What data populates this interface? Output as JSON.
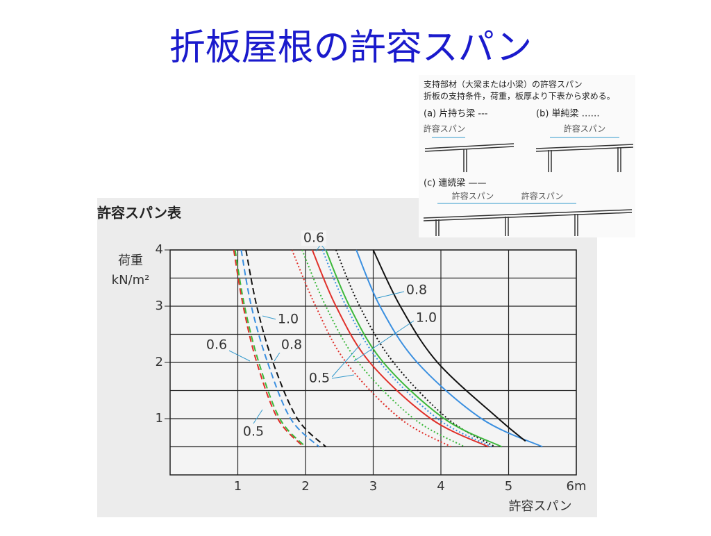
{
  "title": "折板屋根の許容スパン",
  "inset": {
    "heading": "支持部材（大梁または小梁）の許容スパン",
    "note": "折板の支持条件，荷重，板厚より下表から求める。",
    "case_a": "(a) 片持ち梁 ---",
    "case_b": "(b) 単純梁 ……",
    "case_c": "(c) 連続梁 ——",
    "span_labels": [
      "許容スパン",
      "許容スパン",
      "許容スパン",
      "許容スパン"
    ]
  },
  "chart_data": {
    "type": "line",
    "title": "許容スパン表",
    "y_label": [
      "荷重",
      "kN/m²"
    ],
    "x_label": "許容スパン",
    "xlim": [
      0,
      6
    ],
    "ylim": [
      0,
      4
    ],
    "xticks": [
      1,
      2,
      3,
      4,
      5,
      {
        "value": 6,
        "label": "6m"
      }
    ],
    "yticks": [
      1,
      2,
      3,
      4
    ],
    "minor_yticks": [
      0.5,
      1.5,
      2.5,
      3.5
    ],
    "grid": true,
    "series": [
      {
        "color": "#e0302a",
        "linestyle": "dash",
        "x": [
          0.94,
          1.08,
          1.28,
          1.59,
          1.97
        ],
        "values": [
          4,
          3,
          2,
          1,
          0.5
        ]
      },
      {
        "color": "#3cb83c",
        "linestyle": "dash",
        "x": [
          0.96,
          1.1,
          1.31,
          1.62,
          2.0
        ],
        "values": [
          4,
          3,
          2,
          1,
          0.5
        ]
      },
      {
        "color": "#3a8fe0",
        "linestyle": "dash",
        "x": [
          1.05,
          1.2,
          1.44,
          1.78,
          2.2
        ],
        "values": [
          4,
          3,
          2,
          1,
          0.5
        ]
      },
      {
        "color": "#111111",
        "linestyle": "dash",
        "x": [
          1.12,
          1.28,
          1.52,
          1.88,
          2.3
        ],
        "values": [
          4,
          3,
          2,
          1,
          0.5
        ]
      },
      {
        "color": "#e0302a",
        "linestyle": "dot",
        "x": [
          1.8,
          2.15,
          2.6,
          3.4,
          4.15
        ],
        "values": [
          4,
          3,
          2,
          1,
          0.5
        ]
      },
      {
        "color": "#3cb83c",
        "linestyle": "dot",
        "x": [
          1.95,
          2.3,
          2.78,
          3.6,
          4.35
        ],
        "values": [
          4,
          3,
          2,
          1,
          0.5
        ]
      },
      {
        "color": "#3a8fe0",
        "linestyle": "dot",
        "x": [
          2.25,
          2.6,
          3.1,
          3.95,
          4.75
        ],
        "values": [
          4,
          3,
          2,
          1,
          0.5
        ]
      },
      {
        "color": "#111111",
        "linestyle": "dot",
        "x": [
          2.45,
          2.8,
          3.3,
          4.1,
          4.8
        ],
        "values": [
          4,
          3,
          2,
          1,
          0.5
        ]
      },
      {
        "color": "#e0302a",
        "linestyle": "solid",
        "x": [
          2.1,
          2.45,
          2.95,
          3.85,
          4.7
        ],
        "values": [
          4,
          3,
          2,
          1,
          0.5
        ]
      },
      {
        "color": "#3cb83c",
        "linestyle": "solid",
        "x": [
          2.3,
          2.65,
          3.15,
          4.05,
          4.9
        ],
        "values": [
          4,
          3,
          2,
          1,
          0.5
        ]
      },
      {
        "color": "#3a8fe0",
        "linestyle": "solid",
        "x": [
          2.75,
          3.1,
          3.65,
          4.6,
          5.5
        ],
        "values": [
          4,
          3,
          2,
          1,
          0.5
        ]
      },
      {
        "color": "#111111",
        "linestyle": "solid",
        "x": [
          3.0,
          3.4,
          3.95,
          4.85,
          5.25
        ],
        "values": [
          4,
          3,
          2,
          1,
          0.6
        ]
      }
    ],
    "annotations": [
      "0.6",
      "0.8",
      "1.0",
      "1.0",
      "0.6",
      "0.8",
      "0.5",
      "0.5"
    ]
  }
}
